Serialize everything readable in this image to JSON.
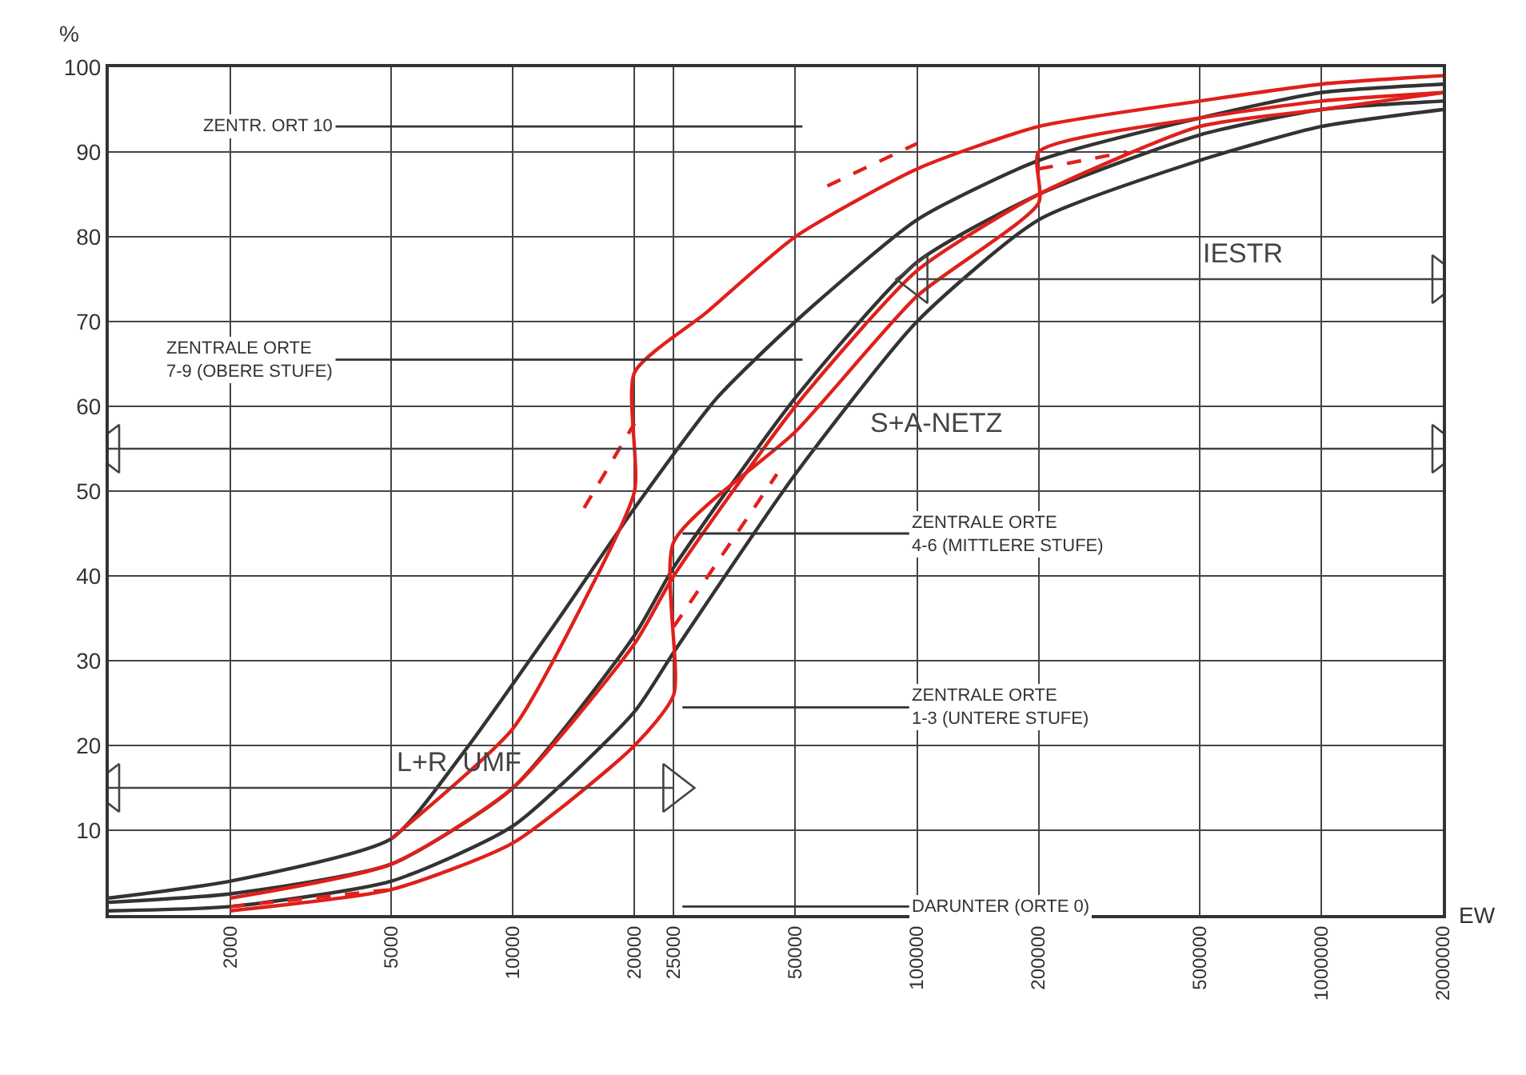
{
  "chart_data": {
    "type": "line",
    "xlabel": "EW",
    "ylabel": "%",
    "log": "x",
    "xlim": [
      1000,
      2000000
    ],
    "xticks": [
      2000,
      5000,
      10000,
      20000,
      25000,
      50000,
      100000,
      200000,
      500000,
      1000000,
      2000000
    ],
    "ylim": [
      0,
      100
    ],
    "yticks": [
      {
        "value": 0,
        "label": null
      },
      10,
      20,
      30,
      40,
      50,
      60,
      70,
      80,
      90,
      100
    ],
    "grid": true,
    "marker": "none",
    "line_style": "solid",
    "series": [
      {
        "color": "#333333",
        "x": [
          1000,
          2000,
          5000,
          7500,
          13000,
          20000,
          32000,
          50000,
          100000,
          200000,
          500000,
          1000000,
          2000000
        ],
        "values": [
          2,
          4,
          9,
          19,
          35,
          48,
          61,
          70,
          82,
          89,
          94,
          97,
          98
        ]
      },
      {
        "color": "#333333",
        "x": [
          1000,
          2000,
          5000,
          10000,
          20000,
          25000,
          50000,
          100000,
          200000,
          500000,
          1000000,
          2000000
        ],
        "values": [
          1.5,
          2.5,
          6,
          15,
          33,
          41,
          61,
          77,
          85,
          92,
          95,
          96
        ]
      },
      {
        "color": "#333333",
        "x": [
          1000,
          2000,
          5000,
          10000,
          20000,
          25000,
          50000,
          100000,
          200000,
          500000,
          1000000,
          2000000
        ],
        "values": [
          0.5,
          1,
          4,
          10.5,
          24,
          31,
          52,
          70,
          82,
          89,
          93,
          95
        ]
      },
      {
        "color": "#e0201b",
        "x": [
          5000,
          10000,
          15000,
          20000,
          20000,
          30000,
          50000,
          100000,
          200000,
          500000,
          1000000,
          2000000
        ],
        "values": [
          9,
          22,
          37,
          50,
          64,
          71,
          80,
          88,
          93,
          96,
          98,
          99
        ]
      },
      {
        "color": "#e0201b",
        "x": [
          2000,
          5000,
          10000,
          20000,
          25000,
          50000,
          100000,
          200000,
          500000,
          1000000,
          2000000
        ],
        "values": [
          2,
          6,
          15,
          32,
          40,
          60,
          76,
          85,
          93,
          95,
          97
        ]
      },
      {
        "color": "#e0201b",
        "x": [
          2000,
          5000,
          10000,
          20000,
          25000,
          25000,
          50000,
          100000,
          200000,
          200000,
          500000,
          1000000,
          2000000
        ],
        "values": [
          0.5,
          3,
          8.5,
          20,
          26,
          44,
          57,
          73,
          84,
          90,
          94,
          96,
          97
        ]
      },
      {
        "color": "#e0201b",
        "line_style": "dashed",
        "x": [
          15000,
          20000
        ],
        "values": [
          48,
          58
        ]
      },
      {
        "color": "#e0201b",
        "line_style": "dashed",
        "x": [
          25000,
          45000
        ],
        "values": [
          34,
          52
        ]
      },
      {
        "color": "#e0201b",
        "line_style": "dashed",
        "x": [
          60000,
          100000
        ],
        "values": [
          86,
          91
        ]
      },
      {
        "color": "#e0201b",
        "line_style": "dashed",
        "x": [
          200000,
          330000
        ],
        "values": [
          88,
          90
        ]
      },
      {
        "color": "#e0201b",
        "line_style": "dashed",
        "x": [
          2000,
          5000
        ],
        "values": [
          1,
          3
        ]
      },
      {
        "name": "L+R. UMF",
        "color": "#444444",
        "marker": "triangle",
        "x": [
          1000,
          25000
        ],
        "values": [
          15,
          15
        ]
      },
      {
        "name": "S+A-NETZ",
        "color": "#444444",
        "marker": "triangle",
        "x": [
          1000,
          2000000
        ],
        "values": [
          55,
          55
        ]
      },
      {
        "name": "IESTR",
        "color": "#444444",
        "marker": "triangle",
        "x": [
          100000,
          2000000
        ],
        "values": [
          75,
          75
        ]
      }
    ],
    "ref_lines": [
      {
        "axis": "y",
        "value": 93,
        "label": "ZENTR. ORT 10"
      },
      {
        "axis": "y",
        "value": 65.5,
        "label": "ZENTRALE ORTE\n7-9 (OBERE STUFE)"
      },
      {
        "axis": "y",
        "value": 45,
        "label": "ZENTRALE ORTE\n4-6 (MITTLERE STUFE)"
      },
      {
        "axis": "y",
        "value": 24.5,
        "label": "ZENTRALE ORTE\n1-3 (UNTERE STUFE)"
      },
      {
        "axis": "y",
        "value": 1,
        "label": "DARUNTER (ORTE 0)"
      }
    ]
  }
}
